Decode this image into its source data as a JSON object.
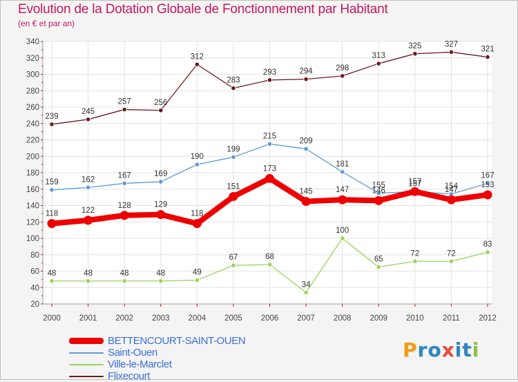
{
  "logo": {
    "text": "Proxiti",
    "letter_colors": [
      "#f39c12",
      "#2e86c1",
      "#2e86c1",
      "#e74c3c",
      "#2e86c1",
      "#2e86c1",
      "#8bc34a"
    ]
  },
  "chart_data": {
    "type": "line",
    "title": "Evolution de la Dotation Globale de Fonctionnement par Habitant",
    "subtitle": "(en € et par an)",
    "xlabel": "",
    "ylabel": "",
    "categories": [
      "2000",
      "2001",
      "2002",
      "2003",
      "2004",
      "2005",
      "2006",
      "2007",
      "2008",
      "2009",
      "2010",
      "2011",
      "2012"
    ],
    "ylim": [
      20,
      340
    ],
    "yticks": [
      20,
      40,
      60,
      80,
      100,
      120,
      140,
      160,
      180,
      200,
      220,
      240,
      260,
      280,
      300,
      320,
      340
    ],
    "grid": true,
    "legend_position": "bottom-left",
    "series": [
      {
        "name": "Flixecourt",
        "color": "#6b1a1f",
        "values": [
          239,
          245,
          257,
          256,
          312,
          283,
          293,
          294,
          298,
          313,
          325,
          327,
          321
        ]
      },
      {
        "name": "Saint-Ouen",
        "color": "#5b9bd5",
        "values": [
          159,
          162,
          167,
          169,
          190,
          199,
          215,
          209,
          181,
          155,
          157,
          154,
          167
        ]
      },
      {
        "name": "Ville-le-Marclet",
        "color": "#9ad35a",
        "values": [
          48,
          48,
          48,
          48,
          49,
          67,
          68,
          34,
          100,
          65,
          72,
          72,
          83
        ]
      },
      {
        "name": "BETTENCOURT-SAINT-OUEN",
        "color": "#ee0000",
        "values": [
          118,
          122,
          128,
          129,
          118,
          151,
          173,
          145,
          147,
          146,
          157,
          147,
          153
        ]
      }
    ],
    "legend_order": [
      "BETTENCOURT-SAINT-OUEN",
      "Saint-Ouen",
      "Ville-le-Marclet",
      "Flixecourt"
    ]
  }
}
